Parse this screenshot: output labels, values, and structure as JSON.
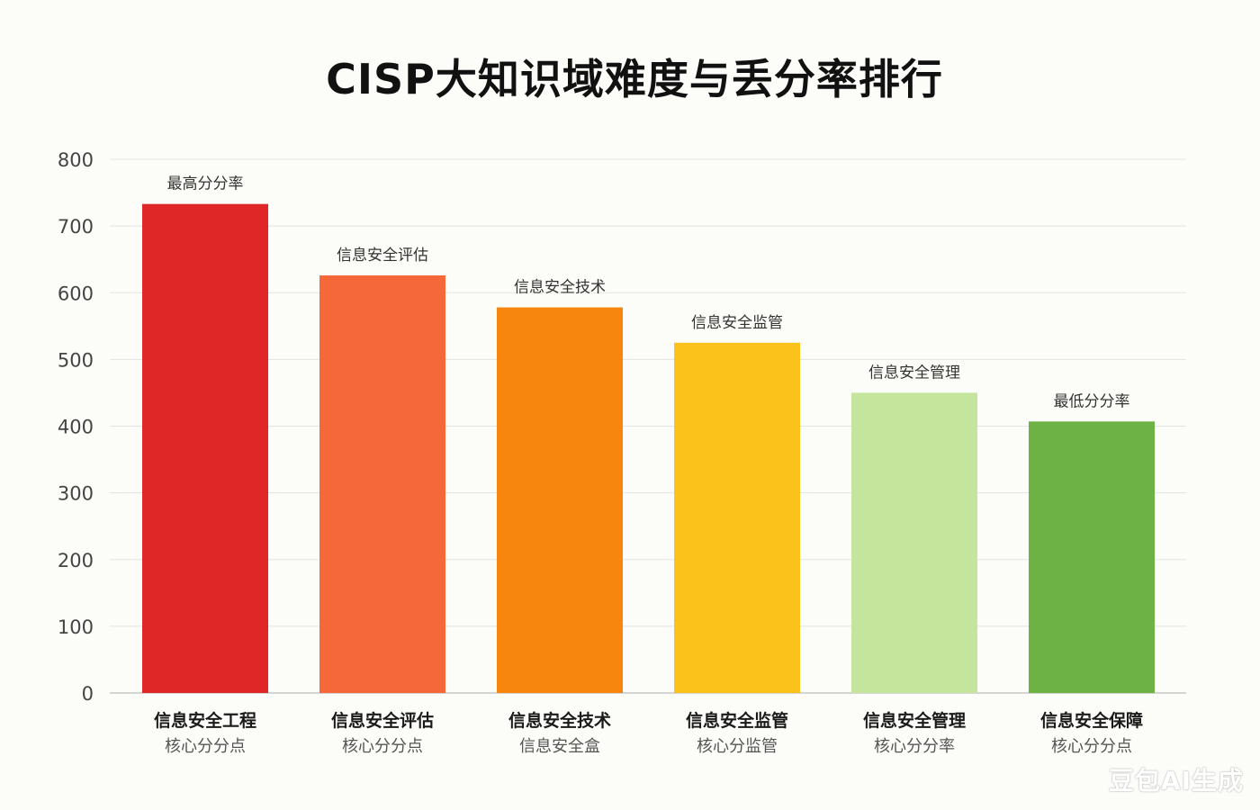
{
  "chart_data": {
    "type": "bar",
    "title": "CISP大知识域难度与丢分率排行",
    "xlabel": "",
    "ylabel": "",
    "ylim": [
      0,
      800
    ],
    "yticks": [
      0,
      100,
      200,
      300,
      400,
      500,
      600,
      700,
      800
    ],
    "grid": true,
    "categories": [
      "信息安全工程",
      "信息安全评估",
      "信息安全技术",
      "信息安全监管",
      "信息安全管理",
      "信息安全保障"
    ],
    "subtitles": [
      "核心分分点",
      "核心分分点",
      "信息安全盒",
      "核心分监管",
      "核心分分率",
      "核心分分点"
    ],
    "annotations": [
      "最高分分率",
      "信息安全评估",
      "信息安全技术",
      "信息安全监管",
      "信息安全管理",
      "最低分分率"
    ],
    "values": [
      733,
      626,
      578,
      525,
      450,
      407
    ],
    "colors": [
      "#e02727",
      "#f5683a",
      "#f7860f",
      "#fbc21c",
      "#c4e59b",
      "#6db244"
    ]
  },
  "watermark": "豆包AI生成"
}
